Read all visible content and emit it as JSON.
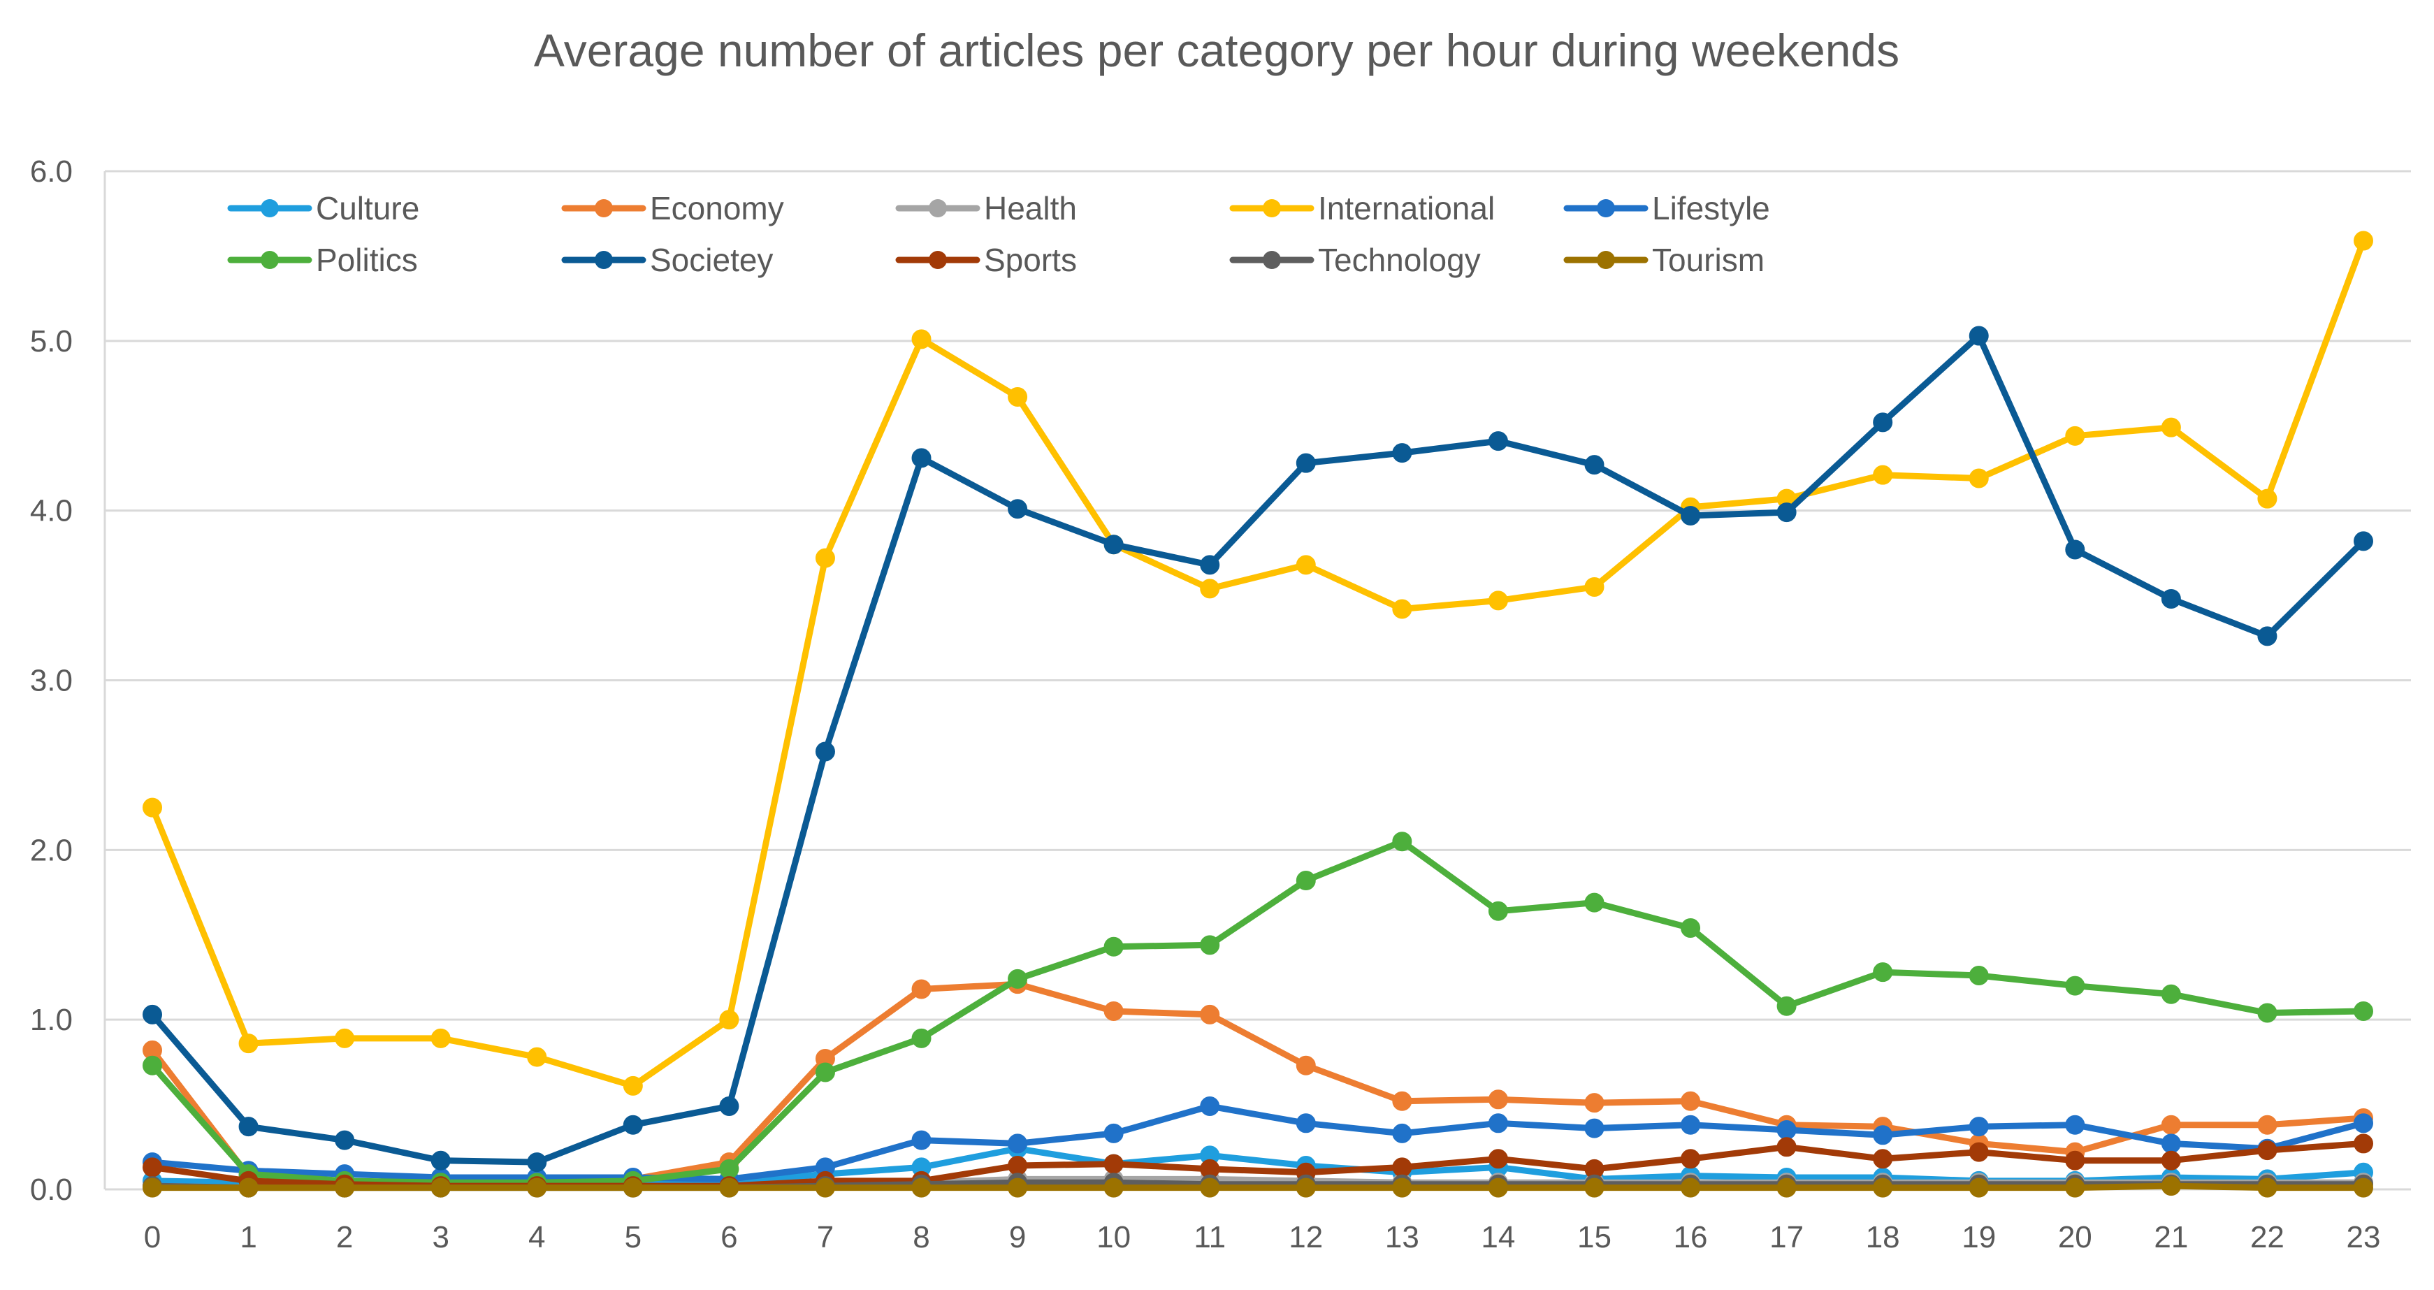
{
  "chart_data": {
    "type": "line",
    "title": "Average number of articles per category per hour during weekends",
    "xlabel": "",
    "ylabel": "",
    "x": [
      "0",
      "1",
      "2",
      "3",
      "4",
      "5",
      "6",
      "7",
      "8",
      "9",
      "10",
      "11",
      "12",
      "13",
      "14",
      "15",
      "16",
      "17",
      "18",
      "19",
      "20",
      "21",
      "22",
      "23"
    ],
    "ylim": [
      0,
      6
    ],
    "yticks": [
      "0.0",
      "1.0",
      "2.0",
      "3.0",
      "4.0",
      "5.0",
      "6.0"
    ],
    "grid": true,
    "legend_position": "top",
    "series": [
      {
        "name": "Culture",
        "color": "#1f9ede",
        "values": [
          0.05,
          0.04,
          0.03,
          0.03,
          0.03,
          0.04,
          0.04,
          0.09,
          0.13,
          0.24,
          0.15,
          0.2,
          0.14,
          0.1,
          0.13,
          0.06,
          0.08,
          0.07,
          0.07,
          0.05,
          0.05,
          0.07,
          0.06,
          0.1
        ]
      },
      {
        "name": "Economy",
        "color": "#ed7d31",
        "values": [
          0.82,
          0.08,
          0.04,
          0.03,
          0.03,
          0.06,
          0.16,
          0.77,
          1.18,
          1.21,
          1.05,
          1.03,
          0.73,
          0.52,
          0.53,
          0.51,
          0.52,
          0.38,
          0.37,
          0.27,
          0.22,
          0.38,
          0.38,
          0.42
        ]
      },
      {
        "name": "Health",
        "color": "#a5a5a5",
        "values": [
          0.02,
          0.01,
          0.01,
          0.01,
          0.01,
          0.01,
          0.02,
          0.03,
          0.04,
          0.06,
          0.06,
          0.06,
          0.05,
          0.04,
          0.04,
          0.04,
          0.04,
          0.04,
          0.04,
          0.04,
          0.04,
          0.04,
          0.04,
          0.04
        ]
      },
      {
        "name": "International",
        "color": "#ffc000",
        "values": [
          2.25,
          0.86,
          0.89,
          0.89,
          0.78,
          0.61,
          1.0,
          3.72,
          5.01,
          4.67,
          3.8,
          3.54,
          3.68,
          3.42,
          3.47,
          3.55,
          4.02,
          4.07,
          4.21,
          4.19,
          4.44,
          4.49,
          4.07,
          5.59
        ]
      },
      {
        "name": "Lifestyle",
        "color": "#2072c9",
        "values": [
          0.16,
          0.11,
          0.09,
          0.07,
          0.07,
          0.07,
          0.06,
          0.13,
          0.29,
          0.27,
          0.33,
          0.49,
          0.39,
          0.33,
          0.39,
          0.36,
          0.38,
          0.35,
          0.32,
          0.37,
          0.38,
          0.27,
          0.24,
          0.39
        ]
      },
      {
        "name": "Politics",
        "color": "#4daf3c",
        "values": [
          0.73,
          0.09,
          0.05,
          0.04,
          0.04,
          0.05,
          0.12,
          0.69,
          0.89,
          1.24,
          1.43,
          1.44,
          1.82,
          2.05,
          1.64,
          1.69,
          1.54,
          1.08,
          1.28,
          1.26,
          1.2,
          1.15,
          1.04,
          1.05
        ]
      },
      {
        "name": "Societey",
        "color": "#0a5a94",
        "values": [
          1.03,
          0.37,
          0.29,
          0.17,
          0.16,
          0.38,
          0.49,
          2.58,
          4.31,
          4.01,
          3.8,
          3.68,
          4.28,
          4.34,
          4.41,
          4.27,
          3.97,
          3.99,
          4.52,
          5.03,
          3.77,
          3.48,
          3.26,
          3.82
        ]
      },
      {
        "name": "Sports",
        "color": "#a23a07",
        "values": [
          0.13,
          0.05,
          0.03,
          0.02,
          0.02,
          0.02,
          0.02,
          0.05,
          0.05,
          0.14,
          0.15,
          0.12,
          0.1,
          0.13,
          0.18,
          0.12,
          0.18,
          0.25,
          0.18,
          0.22,
          0.17,
          0.17,
          0.23,
          0.27
        ]
      },
      {
        "name": "Technology",
        "color": "#5e5e5e",
        "values": [
          0.02,
          0.01,
          0.01,
          0.01,
          0.01,
          0.01,
          0.01,
          0.02,
          0.03,
          0.04,
          0.04,
          0.03,
          0.03,
          0.03,
          0.03,
          0.03,
          0.03,
          0.03,
          0.03,
          0.03,
          0.03,
          0.03,
          0.03,
          0.03
        ]
      },
      {
        "name": "Tourism",
        "color": "#9c7200",
        "values": [
          0.01,
          0.01,
          0.01,
          0.01,
          0.01,
          0.01,
          0.01,
          0.01,
          0.01,
          0.01,
          0.01,
          0.01,
          0.01,
          0.01,
          0.01,
          0.01,
          0.01,
          0.01,
          0.01,
          0.01,
          0.01,
          0.02,
          0.01,
          0.01
        ]
      }
    ]
  }
}
